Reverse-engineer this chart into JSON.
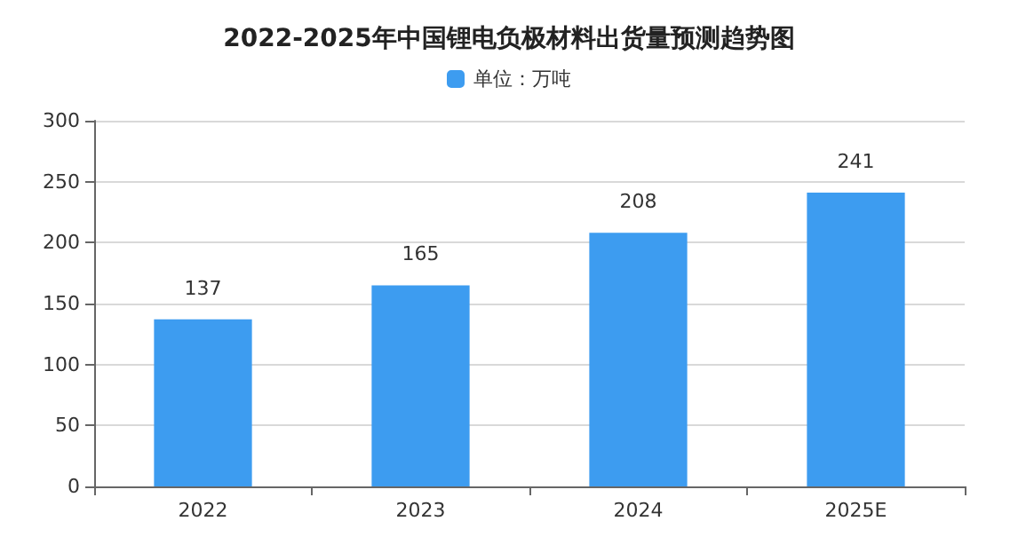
{
  "chart_data": {
    "type": "bar",
    "title": "2022-2025年中国锂电负极材料出货量预测趋势图",
    "categories": [
      "2022",
      "2023",
      "2024",
      "2025E"
    ],
    "series": [
      {
        "name": "单位：万吨",
        "color": "#3d9cf0",
        "values": [
          137,
          165,
          208,
          241
        ]
      }
    ],
    "ylim": [
      0,
      300
    ],
    "yticks": [
      0,
      50,
      100,
      150,
      200,
      250,
      300
    ],
    "grid": "y",
    "legend": "top",
    "data_labels": true
  }
}
